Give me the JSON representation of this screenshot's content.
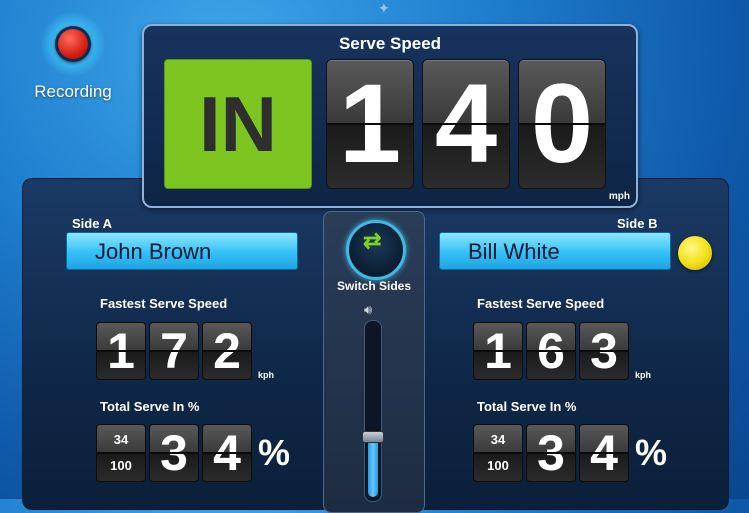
{
  "recording": {
    "label": "Recording"
  },
  "serve": {
    "title": "Serve Speed",
    "status": "IN",
    "digits": [
      "1",
      "4",
      "0"
    ],
    "unit": "mph"
  },
  "sideA": {
    "label": "Side A",
    "player": "John Brown",
    "fastest_title": "Fastest Serve Speed",
    "fastest_digits": [
      "1",
      "7",
      "2"
    ],
    "fastest_unit": "kph",
    "total_title": "Total Serve In %",
    "frac_num": "34",
    "frac_den": "100",
    "pct_digits": [
      "3",
      "4"
    ],
    "pct_symbol": "%"
  },
  "sideB": {
    "label": "Side B",
    "player": "Bill White",
    "fastest_title": "Fastest Serve Speed",
    "fastest_digits": [
      "1",
      "6",
      "3"
    ],
    "fastest_unit": "kph",
    "total_title": "Total Serve In %",
    "frac_num": "34",
    "frac_den": "100",
    "pct_digits": [
      "3",
      "4"
    ],
    "pct_symbol": "%"
  },
  "center": {
    "switch_label": "Switch Sides",
    "volume_level": 0.35
  },
  "colors": {
    "accent_green": "#7dc622",
    "name_blue": "#34c0f6"
  }
}
